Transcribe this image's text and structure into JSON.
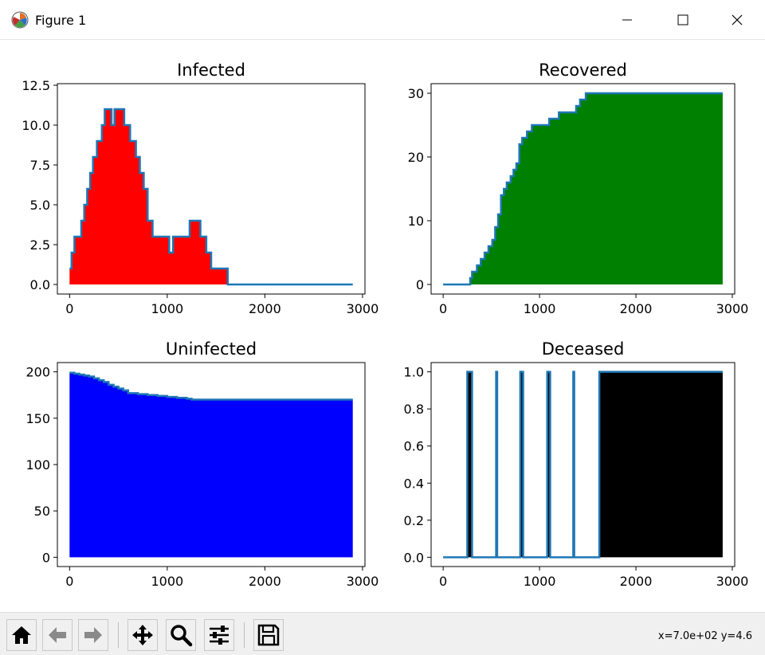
{
  "window": {
    "title": "Figure 1",
    "icons": {
      "app": "matplotlib-icon",
      "minimize": "minimize-icon",
      "maximize": "maximize-icon",
      "close": "close-icon"
    }
  },
  "toolbar": {
    "buttons": [
      {
        "name": "home-icon"
      },
      {
        "name": "back-arrow-icon"
      },
      {
        "name": "forward-arrow-icon"
      },
      {
        "name": "pan-icon"
      },
      {
        "name": "zoom-icon"
      },
      {
        "name": "configure-subplots-icon"
      },
      {
        "name": "save-icon"
      }
    ],
    "coords_text": "x=7.0e+02 y=4.6"
  },
  "chart_data": [
    {
      "type": "area",
      "title": "Infected",
      "fill_color": "#ff0000",
      "line_color": "#1f77b4",
      "xlim": [
        -125,
        3025
      ],
      "ylim": [
        -0.6,
        12.6
      ],
      "xticks": [
        0,
        1000,
        2000,
        3000
      ],
      "yticks": [
        0.0,
        2.5,
        5.0,
        7.5,
        10.0,
        12.5
      ],
      "ytick_labels": [
        "0.0",
        "2.5",
        "5.0",
        "7.5",
        "10.0",
        "12.5"
      ],
      "x": [
        0,
        20,
        50,
        80,
        120,
        150,
        180,
        210,
        240,
        280,
        330,
        360,
        400,
        430,
        460,
        500,
        560,
        620,
        680,
        720,
        760,
        800,
        850,
        900,
        960,
        1020,
        1060,
        1100,
        1140,
        1180,
        1230,
        1290,
        1340,
        1400,
        1450,
        1520,
        1560,
        1600,
        1620,
        1700,
        2000,
        2500,
        2900
      ],
      "y": [
        1,
        2,
        3,
        3,
        4,
        5,
        6,
        7,
        8,
        9,
        10,
        11,
        11,
        10,
        11,
        11,
        10,
        9,
        8,
        7,
        6,
        4,
        3,
        3,
        3,
        2,
        3,
        3,
        3,
        3,
        4,
        4,
        3,
        2,
        1,
        1,
        1,
        1,
        0,
        0,
        0,
        0,
        0
      ]
    },
    {
      "type": "area",
      "title": "Recovered",
      "fill_color": "#008000",
      "line_color": "#1f77b4",
      "xlim": [
        -125,
        3025
      ],
      "ylim": [
        -1.5,
        31.5
      ],
      "xticks": [
        0,
        1000,
        2000,
        3000
      ],
      "yticks": [
        0,
        10,
        20,
        30
      ],
      "ytick_labels": [
        "0",
        "10",
        "20",
        "30"
      ],
      "x": [
        0,
        270,
        280,
        300,
        350,
        390,
        430,
        470,
        510,
        540,
        570,
        600,
        630,
        660,
        700,
        730,
        760,
        790,
        820,
        870,
        920,
        980,
        1040,
        1100,
        1160,
        1200,
        1280,
        1380,
        1420,
        1450,
        1480,
        1500,
        2900
      ],
      "y": [
        0,
        0,
        1,
        2,
        3,
        4,
        5,
        6,
        7,
        9,
        11,
        14,
        15,
        16,
        17,
        18,
        19,
        22,
        23,
        24,
        25,
        25,
        25,
        26,
        26,
        27,
        27,
        28,
        29,
        29,
        30,
        30,
        30
      ]
    },
    {
      "type": "area",
      "title": "Uninfected",
      "fill_color": "#0000ff",
      "line_color": "#1f77b4",
      "xlim": [
        -125,
        3025
      ],
      "ylim": [
        -10,
        210
      ],
      "xticks": [
        0,
        1000,
        2000,
        3000
      ],
      "yticks": [
        0,
        50,
        100,
        150,
        200
      ],
      "ytick_labels": [
        "0",
        "50",
        "100",
        "150",
        "200"
      ],
      "x": [
        0,
        50,
        100,
        150,
        200,
        250,
        300,
        350,
        400,
        450,
        500,
        550,
        600,
        700,
        800,
        900,
        1000,
        1100,
        1200,
        1250,
        1300,
        1500,
        2000,
        2500,
        2900
      ],
      "y": [
        199,
        198,
        197,
        196,
        195,
        193,
        191,
        189,
        186,
        184,
        182,
        180,
        177,
        176,
        175,
        174,
        173,
        172,
        171,
        170,
        170,
        170,
        170,
        170,
        170
      ]
    },
    {
      "type": "area",
      "title": "Deceased",
      "fill_color": "#000000",
      "line_color": "#1f77b4",
      "xlim": [
        -125,
        3025
      ],
      "ylim": [
        -0.05,
        1.05
      ],
      "xticks": [
        0,
        1000,
        2000,
        3000
      ],
      "yticks": [
        0.0,
        0.2,
        0.4,
        0.6,
        0.8,
        1.0
      ],
      "ytick_labels": [
        "0.0",
        "0.2",
        "0.4",
        "0.6",
        "0.8",
        "1.0"
      ],
      "x": [
        0,
        250,
        250,
        300,
        300,
        550,
        550,
        560,
        560,
        800,
        800,
        830,
        830,
        1080,
        1080,
        1110,
        1110,
        1350,
        1350,
        1360,
        1360,
        1620,
        1620,
        2900
      ],
      "y": [
        0,
        0,
        1,
        1,
        0,
        0,
        1,
        1,
        0,
        0,
        1,
        1,
        0,
        0,
        1,
        1,
        0,
        0,
        1,
        1,
        0,
        0,
        1,
        1
      ]
    }
  ]
}
